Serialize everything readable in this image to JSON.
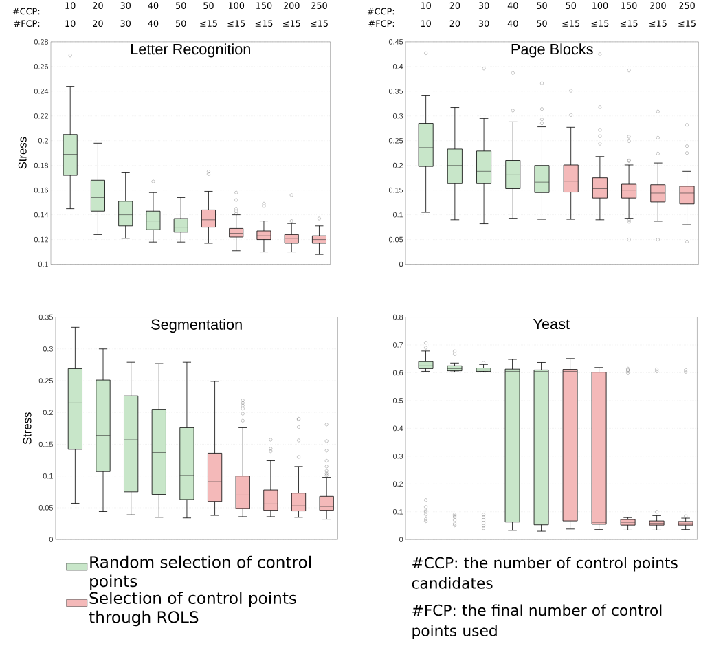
{
  "chart_data": [
    {
      "type": "box",
      "title": "Letter Recognition",
      "ylabel": "Stress",
      "categories": [
        "10",
        "20",
        "30",
        "40",
        "50",
        "50",
        "100",
        "150",
        "200",
        "250"
      ],
      "annotations": [
        "#CCP:",
        "#FCP:",
        "10",
        "20",
        "30",
        "40",
        "50",
        "≤15",
        "≤15",
        "≤15",
        "≤15",
        "≤15"
      ],
      "ylim": [
        0.1,
        0.28
      ],
      "yticks": [
        0.1,
        0.12,
        0.14,
        0.16,
        0.18,
        0.2,
        0.22,
        0.24,
        0.26,
        0.28
      ],
      "grid": "y",
      "marker": "circle",
      "series": [
        {
          "color": "#c8e6c9",
          "boxes": [
            {
              "low": 0.145,
              "q1": 0.172,
              "median": 0.189,
              "q3": 0.205,
              "high": 0.244,
              "outliers": [
                0.269
              ]
            },
            {
              "low": 0.124,
              "q1": 0.143,
              "median": 0.154,
              "q3": 0.168,
              "high": 0.198
            },
            {
              "low": 0.121,
              "q1": 0.131,
              "median": 0.14,
              "q3": 0.151,
              "high": 0.174
            },
            {
              "low": 0.118,
              "q1": 0.128,
              "median": 0.135,
              "q3": 0.143,
              "high": 0.158,
              "outliers": [
                0.167
              ]
            },
            {
              "low": 0.118,
              "q1": 0.126,
              "median": 0.13,
              "q3": 0.137,
              "high": 0.154
            },
            null,
            null,
            null,
            null,
            null
          ]
        },
        {
          "color": "#f4b9b9",
          "boxes": [
            null,
            null,
            null,
            null,
            null,
            {
              "low": 0.117,
              "q1": 0.13,
              "median": 0.136,
              "q3": 0.144,
              "high": 0.159,
              "outliers": [
                0.173,
                0.175
              ]
            },
            {
              "low": 0.111,
              "q1": 0.122,
              "median": 0.125,
              "q3": 0.129,
              "high": 0.14,
              "outliers": [
                0.141,
                0.143,
                0.145,
                0.152,
                0.158
              ]
            },
            {
              "low": 0.11,
              "q1": 0.12,
              "median": 0.123,
              "q3": 0.127,
              "high": 0.135,
              "outliers": [
                0.147,
                0.149
              ]
            },
            {
              "low": 0.11,
              "q1": 0.117,
              "median": 0.121,
              "q3": 0.124,
              "high": 0.133,
              "outliers": [
                0.135,
                0.156
              ]
            },
            {
              "low": 0.108,
              "q1": 0.117,
              "median": 0.12,
              "q3": 0.123,
              "high": 0.131,
              "outliers": [
                0.137
              ]
            }
          ]
        }
      ]
    },
    {
      "type": "box",
      "title": "Page Blocks",
      "categories": [
        "10",
        "20",
        "30",
        "40",
        "50",
        "50",
        "100",
        "150",
        "200",
        "250"
      ],
      "annotations": [
        "#CCP:",
        "#FCP:",
        "10",
        "20",
        "30",
        "40",
        "50",
        "≤15",
        "≤15",
        "≤15",
        "≤15",
        "≤15"
      ],
      "ylim": [
        0,
        0.45
      ],
      "yticks": [
        0,
        0.05,
        0.1,
        0.15,
        0.2,
        0.25,
        0.3,
        0.35,
        0.4,
        0.45
      ],
      "grid": "y",
      "marker": "circle",
      "series": [
        {
          "color": "#c8e6c9",
          "boxes": [
            {
              "low": 0.105,
              "q1": 0.198,
              "median": 0.236,
              "q3": 0.285,
              "high": 0.342,
              "outliers": [
                0.427
              ]
            },
            {
              "low": 0.09,
              "q1": 0.163,
              "median": 0.2,
              "q3": 0.233,
              "high": 0.317
            },
            {
              "low": 0.082,
              "q1": 0.163,
              "median": 0.188,
              "q3": 0.229,
              "high": 0.295,
              "outliers": [
                0.396
              ]
            },
            {
              "low": 0.093,
              "q1": 0.153,
              "median": 0.181,
              "q3": 0.21,
              "high": 0.288,
              "outliers": [
                0.311,
                0.387
              ]
            },
            {
              "low": 0.091,
              "q1": 0.145,
              "median": 0.166,
              "q3": 0.2,
              "high": 0.278,
              "outliers": [
                0.285,
                0.293,
                0.314,
                0.366
              ]
            },
            null,
            null,
            null,
            null,
            null
          ]
        },
        {
          "color": "#f4b9b9",
          "boxes": [
            null,
            null,
            null,
            null,
            null,
            {
              "low": 0.091,
              "q1": 0.146,
              "median": 0.168,
              "q3": 0.201,
              "high": 0.277,
              "outliers": [
                0.302,
                0.351
              ]
            },
            {
              "low": 0.09,
              "q1": 0.134,
              "median": 0.153,
              "q3": 0.175,
              "high": 0.218,
              "outliers": [
                0.244,
                0.259,
                0.272,
                0.318,
                0.425
              ]
            },
            {
              "low": 0.093,
              "q1": 0.134,
              "median": 0.15,
              "q3": 0.162,
              "high": 0.201,
              "outliers": [
                0.05,
                0.086,
                0.089,
                0.209,
                0.21,
                0.249,
                0.258,
                0.392
              ]
            },
            {
              "low": 0.087,
              "q1": 0.126,
              "median": 0.144,
              "q3": 0.161,
              "high": 0.205,
              "outliers": [
                0.05,
                0.224,
                0.256,
                0.309
              ]
            },
            {
              "low": 0.08,
              "q1": 0.122,
              "median": 0.144,
              "q3": 0.158,
              "high": 0.188,
              "outliers": [
                0.046,
                0.225,
                0.239,
                0.282
              ]
            }
          ]
        }
      ]
    },
    {
      "type": "box",
      "title": "Segmentation",
      "ylabel": "Stress",
      "categories": [
        null,
        null,
        null,
        null,
        null,
        null,
        null,
        null,
        null,
        null
      ],
      "tick_labels": "y",
      "legend": "bottom",
      "ylim": [
        0,
        0.35
      ],
      "yticks": [
        0,
        0.05,
        0.1,
        0.15,
        0.2,
        0.25,
        0.3,
        0.35
      ],
      "grid": "y",
      "marker": "circle",
      "series": [
        {
          "name": "Random selection of control points",
          "color": "#c8e6c9",
          "boxes": [
            {
              "low": 0.057,
              "q1": 0.142,
              "median": 0.215,
              "q3": 0.269,
              "high": 0.334
            },
            {
              "low": 0.044,
              "q1": 0.107,
              "median": 0.164,
              "q3": 0.251,
              "high": 0.3
            },
            {
              "low": 0.039,
              "q1": 0.075,
              "median": 0.157,
              "q3": 0.226,
              "high": 0.279
            },
            {
              "low": 0.035,
              "q1": 0.071,
              "median": 0.137,
              "q3": 0.205,
              "high": 0.277
            },
            {
              "low": 0.034,
              "q1": 0.063,
              "median": 0.101,
              "q3": 0.176,
              "high": 0.279
            },
            null,
            null,
            null,
            null,
            null
          ]
        },
        {
          "name": "Selection of control points through ROLS",
          "color": "#f4b9b9",
          "boxes": [
            null,
            null,
            null,
            null,
            null,
            {
              "low": 0.038,
              "q1": 0.06,
              "median": 0.091,
              "q3": 0.136,
              "high": 0.249
            },
            {
              "low": 0.036,
              "q1": 0.049,
              "median": 0.07,
              "q3": 0.1,
              "high": 0.176,
              "outliers": [
                0.187,
                0.198,
                0.206,
                0.211,
                0.215,
                0.219
              ]
            },
            {
              "low": 0.036,
              "q1": 0.046,
              "median": 0.056,
              "q3": 0.078,
              "high": 0.124,
              "outliers": [
                0.139,
                0.143,
                0.157
              ]
            },
            {
              "low": 0.035,
              "q1": 0.045,
              "median": 0.053,
              "q3": 0.073,
              "high": 0.115,
              "outliers": [
                0.13,
                0.156,
                0.177,
                0.189,
                0.19
              ]
            },
            {
              "low": 0.032,
              "q1": 0.046,
              "median": 0.052,
              "q3": 0.068,
              "high": 0.098,
              "outliers": [
                0.101,
                0.104,
                0.108,
                0.115,
                0.124,
                0.14,
                0.155,
                0.181
              ]
            }
          ]
        }
      ]
    },
    {
      "type": "box",
      "title": "Yeast",
      "categories": [
        null,
        null,
        null,
        null,
        null,
        null,
        null,
        null,
        null,
        null
      ],
      "tick_labels": "y",
      "annotations": [
        "#CCP: the number of control points candidates",
        "#FCP: the final number of control points used"
      ],
      "ylim": [
        0,
        0.8
      ],
      "yticks": [
        0,
        0.1,
        0.2,
        0.3,
        0.4,
        0.5,
        0.6,
        0.7,
        0.8
      ],
      "grid": "y",
      "marker": "circle",
      "series": [
        {
          "color": "#c8e6c9",
          "boxes": [
            {
              "low": 0.605,
              "q1": 0.615,
              "median": 0.625,
              "q3": 0.64,
              "high": 0.678,
              "outliers": [
                0.066,
                0.073,
                0.09,
                0.1,
                0.104,
                0.117,
                0.142,
                0.69,
                0.708
              ]
            },
            {
              "low": 0.603,
              "q1": 0.607,
              "median": 0.615,
              "q3": 0.625,
              "high": 0.635,
              "outliers": [
                0.051,
                0.057,
                0.07,
                0.08,
                0.085,
                0.09,
                0.667,
                0.677
              ]
            },
            {
              "low": 0.603,
              "q1": 0.605,
              "median": 0.61,
              "q3": 0.617,
              "high": 0.63,
              "outliers": [
                0.041,
                0.05,
                0.06,
                0.07,
                0.08,
                0.09,
                0.636
              ]
            },
            {
              "low": 0.033,
              "q1": 0.063,
              "median": 0.605,
              "q3": 0.613,
              "high": 0.648
            },
            {
              "low": 0.03,
              "q1": 0.053,
              "median": 0.605,
              "q3": 0.61,
              "high": 0.637
            },
            null,
            null,
            null,
            null,
            null
          ]
        },
        {
          "color": "#f4b9b9",
          "boxes": [
            null,
            null,
            null,
            null,
            null,
            {
              "low": 0.038,
              "q1": 0.067,
              "median": 0.605,
              "q3": 0.612,
              "high": 0.651
            },
            {
              "low": 0.036,
              "q1": 0.055,
              "median": 0.062,
              "q3": 0.602,
              "high": 0.619
            },
            {
              "low": 0.034,
              "q1": 0.052,
              "median": 0.062,
              "q3": 0.072,
              "high": 0.079,
              "outliers": [
                0.6,
                0.605,
                0.61,
                0.615
              ]
            },
            {
              "low": 0.034,
              "q1": 0.052,
              "median": 0.058,
              "q3": 0.067,
              "high": 0.086,
              "outliers": [
                0.1,
                0.605,
                0.612
              ]
            },
            {
              "low": 0.036,
              "q1": 0.052,
              "median": 0.057,
              "q3": 0.065,
              "high": 0.077,
              "outliers": [
                0.084,
                0.603,
                0.61
              ]
            }
          ]
        }
      ]
    }
  ]
}
